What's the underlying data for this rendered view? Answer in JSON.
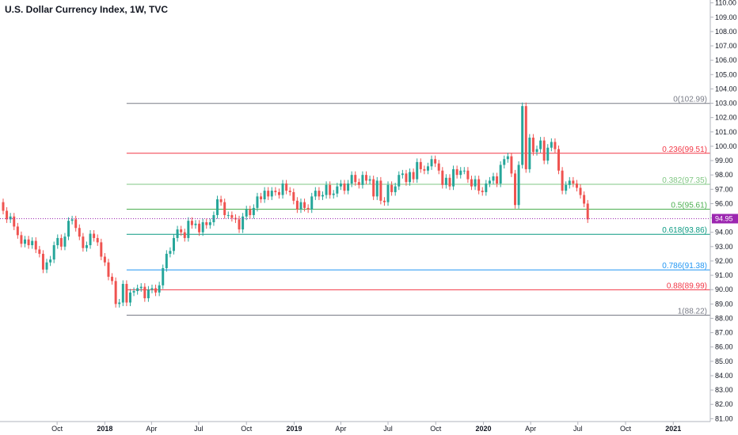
{
  "header": {
    "title": "U.S. Dollar Currency Index, 1W, TVC"
  },
  "colors": {
    "up": "#26a69a",
    "down": "#ef5350",
    "current_price": "#9c27b0",
    "axis_text": "#131722",
    "axis_line": "#b2b5be"
  },
  "chart_data": {
    "type": "candlestick",
    "title": "U.S. Dollar Currency Index, 1W, TVC",
    "y_ticks": [
      "81.00",
      "82.00",
      "83.00",
      "84.00",
      "85.00",
      "86.00",
      "87.00",
      "88.00",
      "89.00",
      "90.00",
      "91.00",
      "92.00",
      "93.00",
      "94.00",
      "95.00",
      "96.00",
      "97.00",
      "98.00",
      "99.00",
      "100.00",
      "101.00",
      "102.00",
      "103.00",
      "104.00",
      "105.00",
      "106.00",
      "107.00",
      "108.00",
      "109.00",
      "110.00"
    ],
    "ylim": [
      80.8,
      110.2
    ],
    "x_ticks": [
      {
        "label": "Oct",
        "date": "2017-10-01"
      },
      {
        "label": "2018",
        "date": "2018-01-01"
      },
      {
        "label": "Apr",
        "date": "2018-04-01"
      },
      {
        "label": "Jul",
        "date": "2018-07-01"
      },
      {
        "label": "Oct",
        "date": "2018-10-01"
      },
      {
        "label": "2019",
        "date": "2019-01-01"
      },
      {
        "label": "Apr",
        "date": "2019-04-01"
      },
      {
        "label": "Jul",
        "date": "2019-07-01"
      },
      {
        "label": "Oct",
        "date": "2019-10-01"
      },
      {
        "label": "2020",
        "date": "2020-01-01"
      },
      {
        "label": "Apr",
        "date": "2020-04-01"
      },
      {
        "label": "Jul",
        "date": "2020-07-01"
      },
      {
        "label": "Oct",
        "date": "2020-10-01"
      },
      {
        "label": "2021",
        "date": "2021-01-01"
      }
    ],
    "xlim": [
      "2017-06-19",
      "2021-01-25"
    ],
    "current_price": {
      "label": "94.95",
      "value": 94.95
    },
    "fib_levels": [
      {
        "label": "0(102.99)",
        "value": 102.99,
        "color": "#787b86"
      },
      {
        "label": "0.236(99.51)",
        "value": 99.51,
        "color": "#f23645"
      },
      {
        "label": "0.382(97.35)",
        "value": 97.35,
        "color": "#81c784"
      },
      {
        "label": "0.5(95.61)",
        "value": 95.61,
        "color": "#4caf50"
      },
      {
        "label": "0.618(93.86)",
        "value": 93.86,
        "color": "#089981"
      },
      {
        "label": "0.786(91.38)",
        "value": 91.38,
        "color": "#2196f3"
      },
      {
        "label": "0.88(89.99)",
        "value": 89.99,
        "color": "#f23645"
      },
      {
        "label": "1(88.22)",
        "value": 88.22,
        "color": "#787b86"
      }
    ],
    "fib_start": "2018-02-12",
    "candles": [
      [
        "2017-06-19",
        96.1,
        95.5
      ],
      [
        "2017-06-26",
        95.5,
        94.9
      ],
      [
        "2017-07-03",
        94.9,
        95.1
      ],
      [
        "2017-07-10",
        95.1,
        94.4
      ],
      [
        "2017-07-17",
        94.4,
        93.8
      ],
      [
        "2017-07-24",
        93.8,
        93.2
      ],
      [
        "2017-07-31",
        93.2,
        93.5
      ],
      [
        "2017-08-07",
        93.5,
        93.1
      ],
      [
        "2017-08-14",
        93.1,
        93.4
      ],
      [
        "2017-08-21",
        93.4,
        92.8
      ],
      [
        "2017-08-28",
        92.8,
        92.5
      ],
      [
        "2017-09-04",
        92.5,
        91.4
      ],
      [
        "2017-09-11",
        91.4,
        91.9
      ],
      [
        "2017-09-18",
        91.9,
        92.1
      ],
      [
        "2017-09-25",
        92.1,
        93.1
      ],
      [
        "2017-10-02",
        93.1,
        93.6
      ],
      [
        "2017-10-09",
        93.6,
        93.0
      ],
      [
        "2017-10-16",
        93.0,
        93.7
      ],
      [
        "2017-10-23",
        93.7,
        94.8
      ],
      [
        "2017-10-30",
        94.8,
        94.9
      ],
      [
        "2017-11-06",
        94.9,
        94.3
      ],
      [
        "2017-11-13",
        94.3,
        93.7
      ],
      [
        "2017-11-20",
        93.7,
        92.9
      ],
      [
        "2017-11-27",
        92.9,
        93.1
      ],
      [
        "2017-12-04",
        93.1,
        93.9
      ],
      [
        "2017-12-11",
        93.9,
        93.6
      ],
      [
        "2017-12-18",
        93.6,
        93.3
      ],
      [
        "2017-12-25",
        93.3,
        92.3
      ],
      [
        "2018-01-01",
        92.3,
        91.9
      ],
      [
        "2018-01-08",
        91.9,
        90.9
      ],
      [
        "2018-01-15",
        90.9,
        90.6
      ],
      [
        "2018-01-22",
        90.6,
        89.0
      ],
      [
        "2018-01-29",
        89.0,
        89.1
      ],
      [
        "2018-02-05",
        89.1,
        90.4
      ],
      [
        "2018-02-12",
        90.4,
        89.1
      ],
      [
        "2018-02-19",
        89.1,
        89.8
      ],
      [
        "2018-02-26",
        89.8,
        89.9
      ],
      [
        "2018-03-05",
        89.9,
        90.1
      ],
      [
        "2018-03-12",
        90.1,
        90.2
      ],
      [
        "2018-03-19",
        90.2,
        89.4
      ],
      [
        "2018-03-26",
        89.4,
        90.0
      ],
      [
        "2018-04-02",
        90.0,
        90.1
      ],
      [
        "2018-04-09",
        90.1,
        89.8
      ],
      [
        "2018-04-16",
        89.8,
        90.3
      ],
      [
        "2018-04-23",
        90.3,
        91.5
      ],
      [
        "2018-04-30",
        91.5,
        92.5
      ],
      [
        "2018-05-07",
        92.5,
        92.7
      ],
      [
        "2018-05-14",
        92.7,
        93.6
      ],
      [
        "2018-05-21",
        93.6,
        94.2
      ],
      [
        "2018-05-28",
        94.2,
        94.0
      ],
      [
        "2018-06-04",
        94.0,
        93.6
      ],
      [
        "2018-06-11",
        93.6,
        94.8
      ],
      [
        "2018-06-18",
        94.8,
        94.5
      ],
      [
        "2018-06-25",
        94.5,
        94.6
      ],
      [
        "2018-07-02",
        94.6,
        94.0
      ],
      [
        "2018-07-09",
        94.0,
        94.7
      ],
      [
        "2018-07-16",
        94.7,
        94.5
      ],
      [
        "2018-07-23",
        94.5,
        94.7
      ],
      [
        "2018-07-30",
        94.7,
        95.2
      ],
      [
        "2018-08-06",
        95.2,
        96.3
      ],
      [
        "2018-08-13",
        96.3,
        96.1
      ],
      [
        "2018-08-20",
        96.1,
        95.2
      ],
      [
        "2018-08-27",
        95.2,
        95.2
      ],
      [
        "2018-09-03",
        95.2,
        95.0
      ],
      [
        "2018-09-10",
        95.0,
        94.9
      ],
      [
        "2018-09-17",
        94.9,
        94.2
      ],
      [
        "2018-09-24",
        94.2,
        95.1
      ],
      [
        "2018-10-01",
        95.1,
        95.6
      ],
      [
        "2018-10-08",
        95.6,
        95.2
      ],
      [
        "2018-10-15",
        95.2,
        95.7
      ],
      [
        "2018-10-22",
        95.7,
        96.5
      ],
      [
        "2018-10-29",
        96.5,
        96.3
      ],
      [
        "2018-11-05",
        96.3,
        96.9
      ],
      [
        "2018-11-12",
        96.9,
        96.5
      ],
      [
        "2018-11-19",
        96.5,
        96.9
      ],
      [
        "2018-11-26",
        96.9,
        96.8
      ],
      [
        "2018-12-03",
        96.8,
        96.6
      ],
      [
        "2018-12-10",
        96.6,
        97.4
      ],
      [
        "2018-12-17",
        97.4,
        96.9
      ],
      [
        "2018-12-24",
        96.9,
        96.8
      ],
      [
        "2018-12-31",
        96.8,
        96.2
      ],
      [
        "2019-01-07",
        96.2,
        95.6
      ],
      [
        "2019-01-14",
        95.6,
        96.1
      ],
      [
        "2019-01-21",
        96.1,
        95.7
      ],
      [
        "2019-01-28",
        95.7,
        95.6
      ],
      [
        "2019-02-04",
        95.6,
        96.5
      ],
      [
        "2019-02-11",
        96.5,
        96.9
      ],
      [
        "2019-02-18",
        96.9,
        96.5
      ],
      [
        "2019-02-25",
        96.5,
        96.6
      ],
      [
        "2019-03-04",
        96.6,
        97.3
      ],
      [
        "2019-03-11",
        97.3,
        96.6
      ],
      [
        "2019-03-18",
        96.6,
        96.7
      ],
      [
        "2019-03-25",
        96.7,
        97.2
      ],
      [
        "2019-04-01",
        97.2,
        97.4
      ],
      [
        "2019-04-08",
        97.4,
        96.9
      ],
      [
        "2019-04-15",
        96.9,
        97.4
      ],
      [
        "2019-04-22",
        97.4,
        98.0
      ],
      [
        "2019-04-29",
        98.0,
        97.5
      ],
      [
        "2019-05-06",
        97.5,
        97.3
      ],
      [
        "2019-05-13",
        97.3,
        98.0
      ],
      [
        "2019-05-20",
        98.0,
        97.6
      ],
      [
        "2019-05-27",
        97.6,
        97.7
      ],
      [
        "2019-06-03",
        97.7,
        96.5
      ],
      [
        "2019-06-10",
        96.5,
        97.6
      ],
      [
        "2019-06-17",
        97.6,
        96.2
      ],
      [
        "2019-06-24",
        96.2,
        96.1
      ],
      [
        "2019-07-01",
        96.1,
        97.3
      ],
      [
        "2019-07-08",
        97.3,
        96.8
      ],
      [
        "2019-07-15",
        96.8,
        97.2
      ],
      [
        "2019-07-22",
        97.2,
        98.0
      ],
      [
        "2019-07-29",
        98.0,
        98.1
      ],
      [
        "2019-08-05",
        98.1,
        97.5
      ],
      [
        "2019-08-12",
        97.5,
        98.2
      ],
      [
        "2019-08-19",
        98.2,
        97.7
      ],
      [
        "2019-08-26",
        97.7,
        98.9
      ],
      [
        "2019-09-02",
        98.9,
        98.4
      ],
      [
        "2019-09-09",
        98.4,
        98.3
      ],
      [
        "2019-09-16",
        98.3,
        98.6
      ],
      [
        "2019-09-23",
        98.6,
        99.1
      ],
      [
        "2019-09-30",
        99.1,
        98.8
      ],
      [
        "2019-10-07",
        98.8,
        98.3
      ],
      [
        "2019-10-14",
        98.3,
        97.3
      ],
      [
        "2019-10-21",
        97.3,
        97.8
      ],
      [
        "2019-10-28",
        97.8,
        97.2
      ],
      [
        "2019-11-04",
        97.2,
        98.4
      ],
      [
        "2019-11-11",
        98.4,
        98.0
      ],
      [
        "2019-11-18",
        98.0,
        98.3
      ],
      [
        "2019-11-25",
        98.3,
        98.3
      ],
      [
        "2019-12-02",
        98.3,
        97.7
      ],
      [
        "2019-12-09",
        97.7,
        97.2
      ],
      [
        "2019-12-16",
        97.2,
        97.7
      ],
      [
        "2019-12-23",
        97.7,
        96.9
      ],
      [
        "2019-12-30",
        96.9,
        96.8
      ],
      [
        "2020-01-06",
        96.8,
        97.4
      ],
      [
        "2020-01-13",
        97.4,
        97.6
      ],
      [
        "2020-01-20",
        97.6,
        97.9
      ],
      [
        "2020-01-27",
        97.9,
        97.4
      ],
      [
        "2020-02-03",
        97.4,
        98.7
      ],
      [
        "2020-02-10",
        98.7,
        99.1
      ],
      [
        "2020-02-17",
        99.1,
        99.3
      ],
      [
        "2020-02-24",
        99.3,
        98.1
      ],
      [
        "2020-03-02",
        98.1,
        95.9
      ],
      [
        "2020-03-09",
        95.9,
        98.7
      ],
      [
        "2020-03-16",
        98.7,
        102.8
      ],
      [
        "2020-03-23",
        102.8,
        98.4
      ],
      [
        "2020-03-30",
        98.4,
        100.6
      ],
      [
        "2020-04-06",
        100.6,
        99.6
      ],
      [
        "2020-04-13",
        99.6,
        99.8
      ],
      [
        "2020-04-20",
        99.8,
        100.4
      ],
      [
        "2020-04-27",
        100.4,
        99.0
      ],
      [
        "2020-05-04",
        99.0,
        99.9
      ],
      [
        "2020-05-11",
        99.9,
        100.3
      ],
      [
        "2020-05-18",
        100.3,
        99.8
      ],
      [
        "2020-05-25",
        99.8,
        98.3
      ],
      [
        "2020-06-01",
        98.3,
        96.9
      ],
      [
        "2020-06-08",
        96.9,
        97.3
      ],
      [
        "2020-06-15",
        97.3,
        97.6
      ],
      [
        "2020-06-22",
        97.6,
        97.4
      ],
      [
        "2020-06-29",
        97.4,
        97.1
      ],
      [
        "2020-07-06",
        97.1,
        96.6
      ],
      [
        "2020-07-13",
        96.6,
        96.0
      ],
      [
        "2020-07-20",
        96.0,
        94.9
      ]
    ]
  }
}
